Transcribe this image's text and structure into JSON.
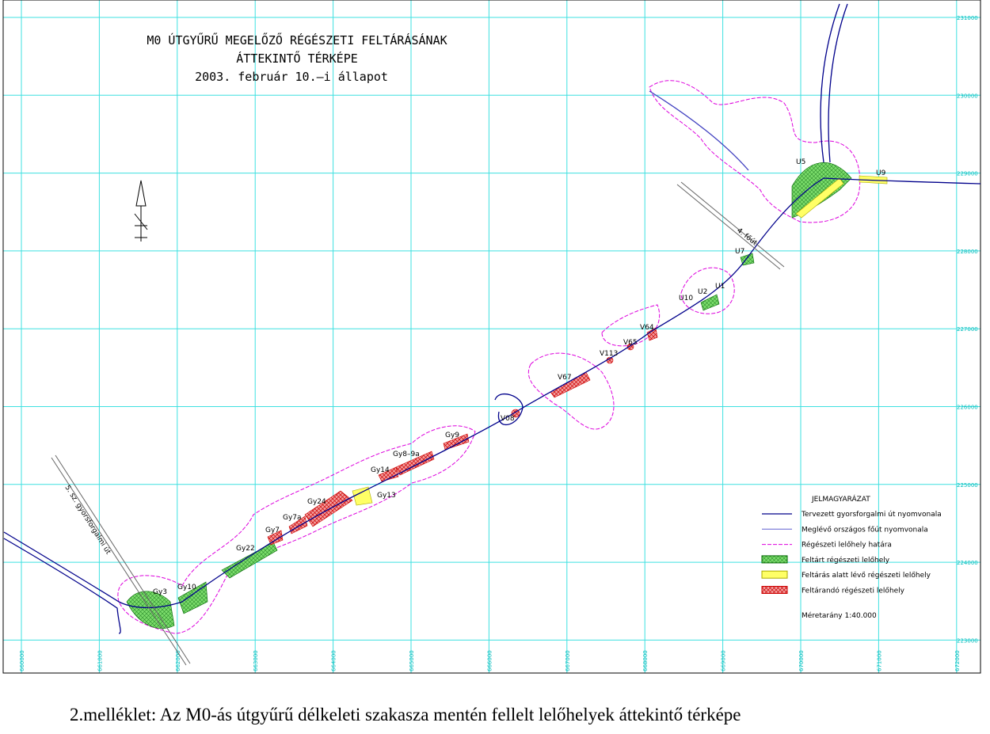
{
  "title": [
    "M0 ÚTGYŰRŰ MEGELŐZŐ RÉGÉSZETI FELTÁRÁSÁNAK",
    "ÁTTEKINTŐ TÉRKÉPE",
    "2003. február 10.–i állapot"
  ],
  "sites": [
    "Gy3",
    "Gy10",
    "Gy22",
    "Gy7",
    "Gy7a",
    "Gy24",
    "Gy13",
    "Gy14",
    "Gy8–9a",
    "Gy9",
    "V08",
    "V67",
    "V113",
    "V65",
    "V64",
    "U10",
    "U2",
    "U1",
    "U7",
    "U5",
    "U9"
  ],
  "roads": [
    "4. főút",
    "5. sz. gyorsforgalmi út"
  ],
  "legend": {
    "title": "JELMAGYARÁZAT",
    "items": [
      "Tervezett gyorsforgalmi út nyomvonala",
      "Meglévő országos főút nyomvonala",
      "Régészeti lelőhely határa",
      "Feltárt régészeti lelőhely",
      "Feltárás alatt lévő régészeti lelőhely",
      "Feltárandó régészeti lelőhely"
    ],
    "scale": "Méretarány 1:40.000"
  },
  "grid": {
    "x_labels": [
      "660000",
      "661000",
      "662000",
      "663000",
      "664000",
      "665000",
      "666000",
      "667000",
      "668000",
      "669000",
      "670000",
      "671000",
      "672000"
    ],
    "y_labels": [
      "231000",
      "230000",
      "229000",
      "228000",
      "227000",
      "226000",
      "225000",
      "224000",
      "223000"
    ]
  },
  "caption": "2.melléklet: Az M0-ás útgyűrű délkeleti szakasza mentén fellelt lelőhelyek  áttekintő térképe"
}
